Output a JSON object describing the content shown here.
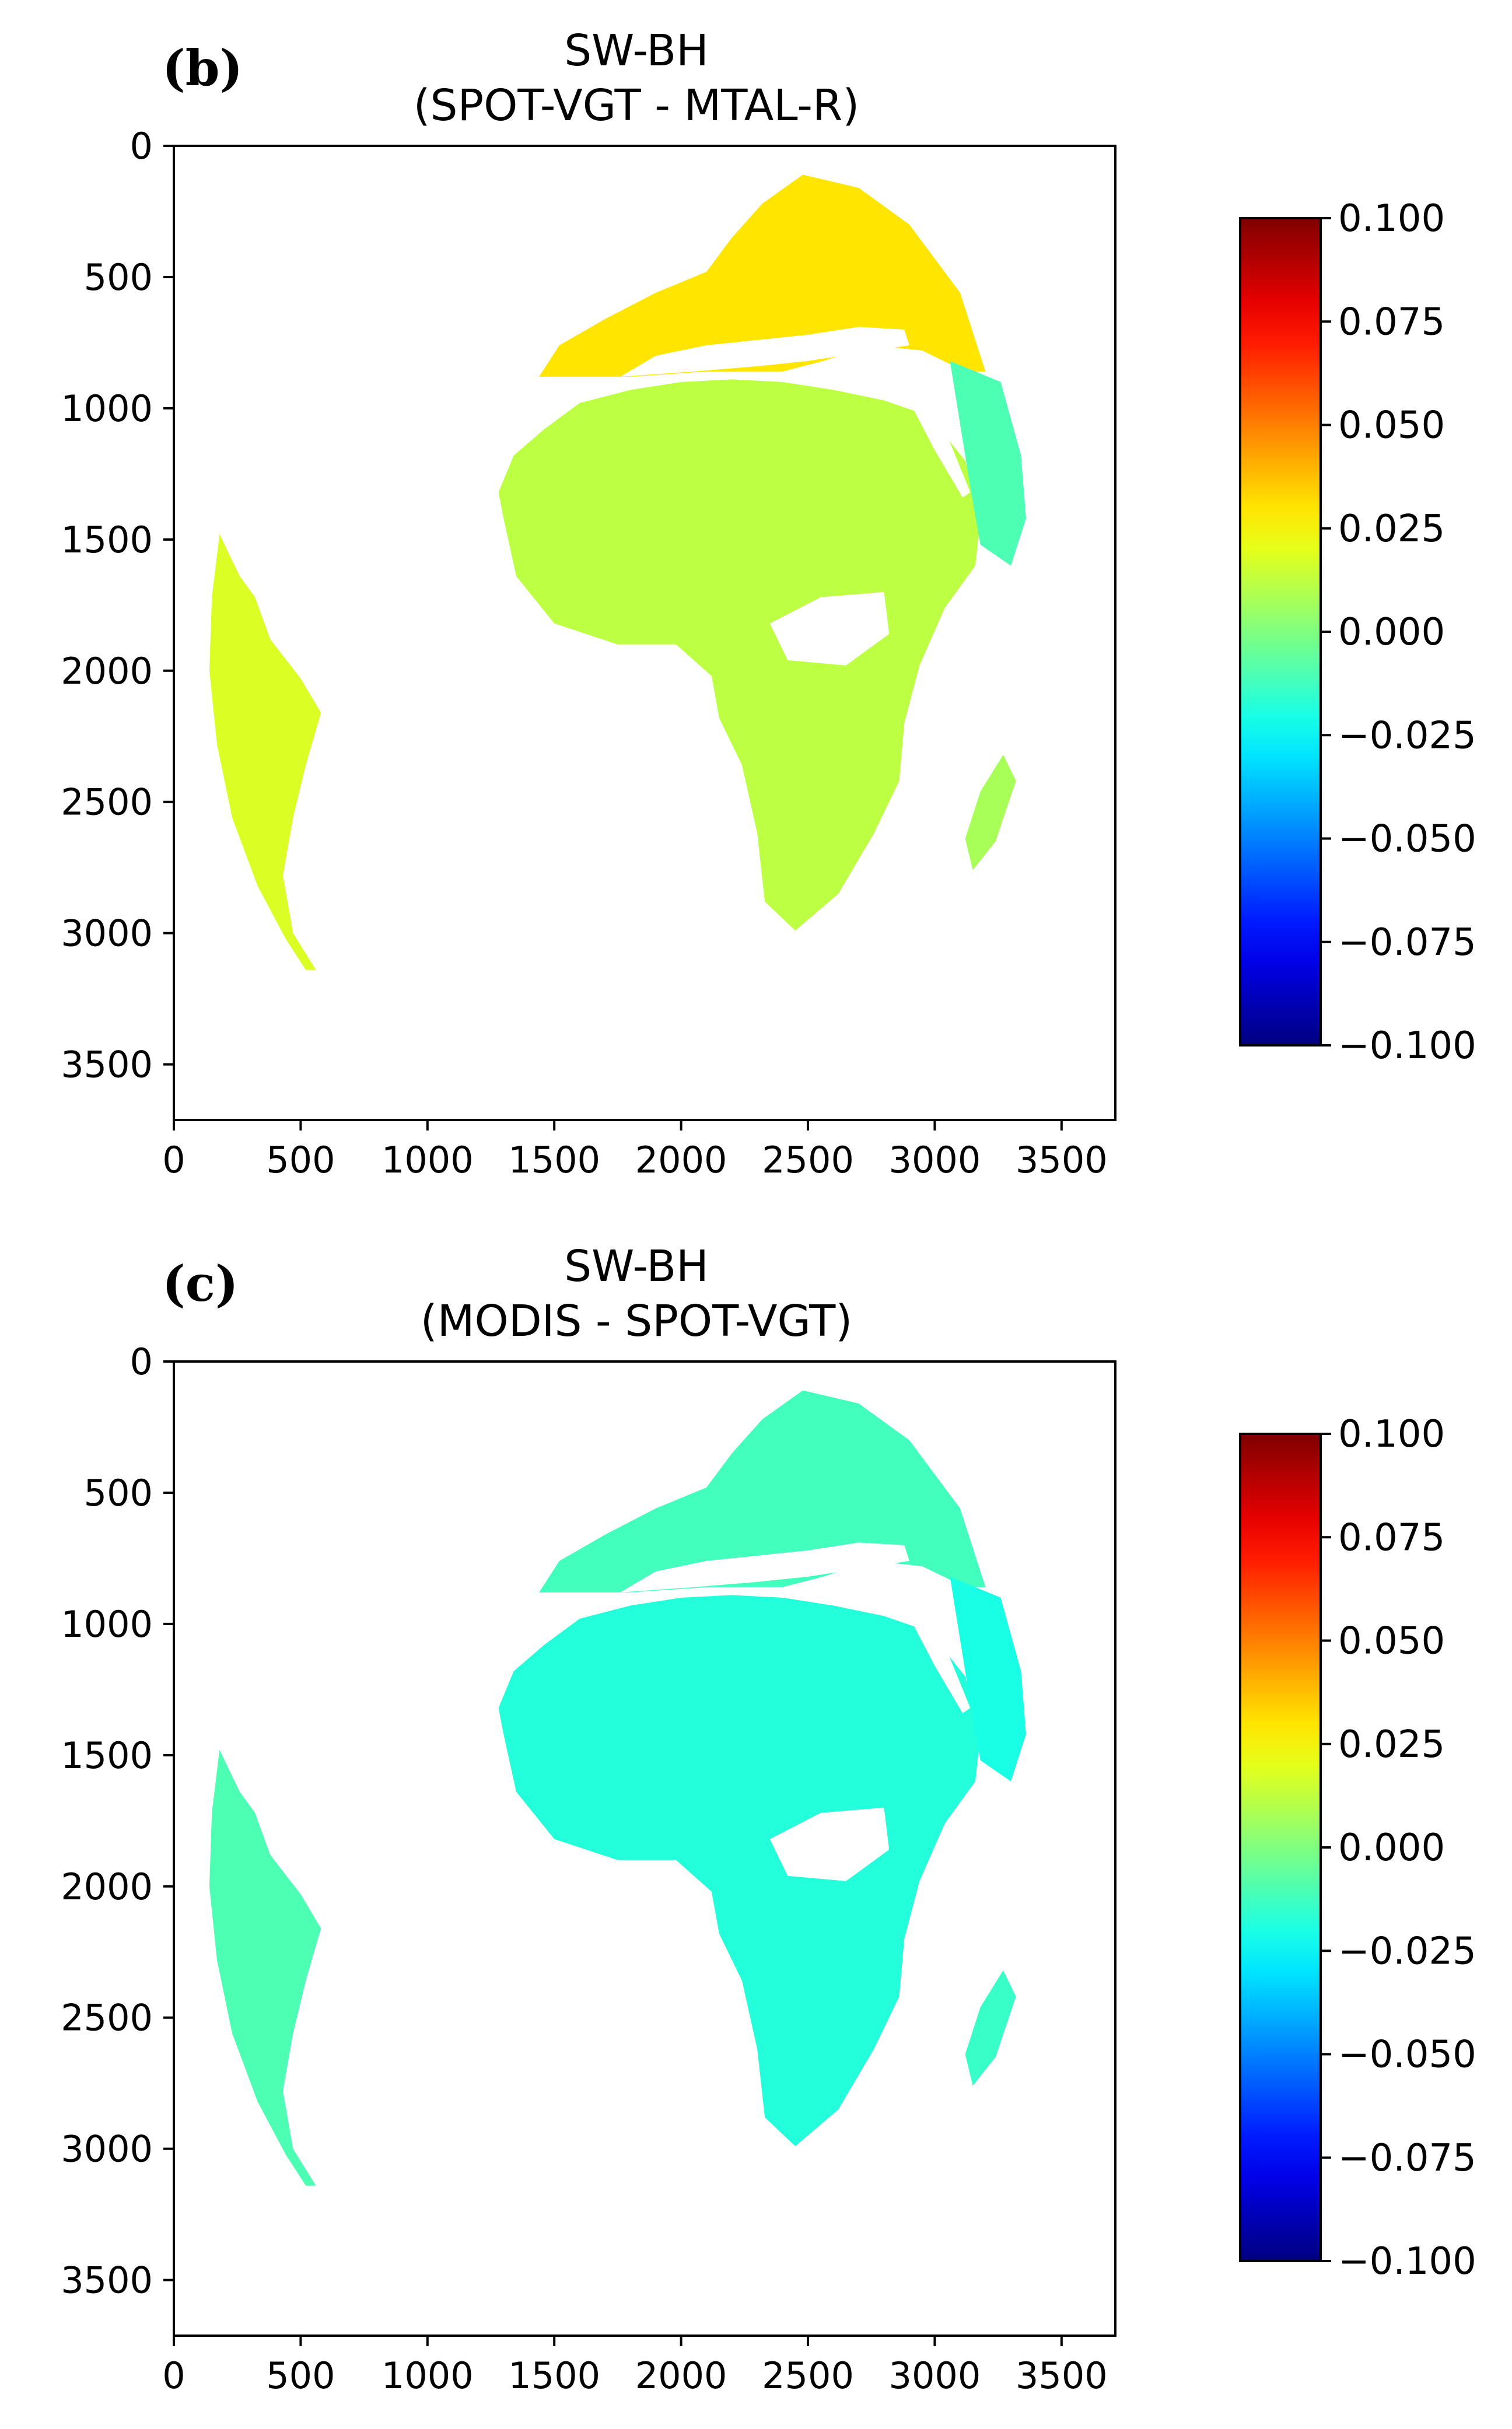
{
  "chart_data": [
    {
      "type": "heatmap",
      "panel_label": "(b)",
      "title": "SW-BH",
      "subtitle": "(SPOT-VGT - MTAL-R)",
      "x_ticks": [
        0,
        500,
        1000,
        1500,
        2000,
        2500,
        3000,
        3500
      ],
      "y_ticks": [
        0,
        500,
        1000,
        1500,
        2000,
        2500,
        3000,
        3500
      ],
      "xlim": [
        0,
        3712
      ],
      "ylim": [
        3712,
        0
      ],
      "colorbar": {
        "colormap": "jet",
        "range": [
          -0.1,
          0.1
        ],
        "tick_labels": [
          "0.100",
          "0.075",
          "0.050",
          "0.025",
          "0.000",
          "−0.025",
          "−0.050",
          "−0.075",
          "−0.100"
        ]
      },
      "description": "Difference map over Europe, Africa and South America; mostly 0.000 to 0.025 over land, up to about 0.05 over northern Europe and South American west coast"
    },
    {
      "type": "heatmap",
      "panel_label": "(c)",
      "title": "SW-BH",
      "subtitle": "(MODIS - SPOT-VGT)",
      "x_ticks": [
        0,
        500,
        1000,
        1500,
        2000,
        2500,
        3000,
        3500
      ],
      "y_ticks": [
        0,
        500,
        1000,
        1500,
        2000,
        2500,
        3000,
        3500
      ],
      "xlim": [
        0,
        3712
      ],
      "ylim": [
        3712,
        0
      ],
      "colorbar": {
        "colormap": "jet",
        "range": [
          -0.1,
          0.1
        ],
        "tick_labels": [
          "0.100",
          "0.075",
          "0.050",
          "0.025",
          "0.000",
          "−0.025",
          "−0.050",
          "−0.075",
          "−0.100"
        ]
      },
      "description": "Difference map mostly between -0.025 and 0.000 over land; bluer (about -0.05) over the Sahara"
    }
  ],
  "colors": {
    "background": "#ffffff",
    "axes": "#000000"
  }
}
